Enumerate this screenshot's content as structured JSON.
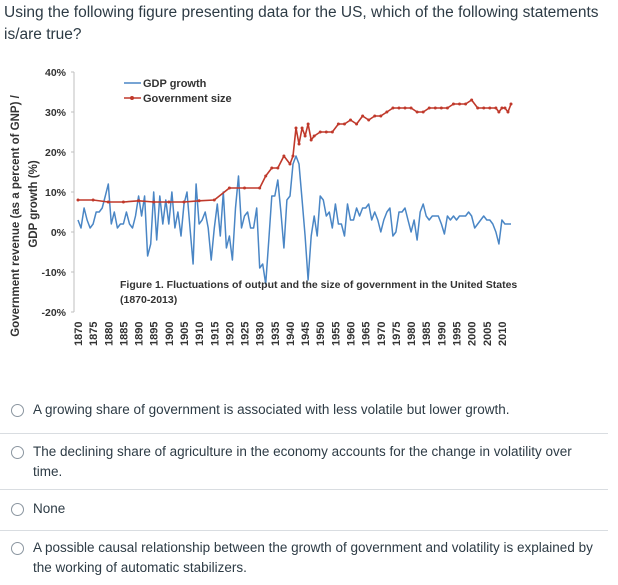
{
  "question": {
    "text": "Using the following figure presenting data for the US, which of the following statements is/are true?"
  },
  "chart_data": {
    "type": "line",
    "caption_line1": "Figure 1. Fluctuations of output and the size of government in the United States",
    "caption_line2": "(1870-2013)",
    "ylabel_outer": "Government revenue (as a percent of GNP) /",
    "ylabel_inner": "GDP growth (%)",
    "ylim": [
      -20,
      40
    ],
    "xlim": [
      1870,
      2013
    ],
    "y_ticks": [
      "40%",
      "30%",
      "20%",
      "10%",
      "0%",
      "-10%",
      "-20%"
    ],
    "y_tick_values": [
      40,
      30,
      20,
      10,
      0,
      -10,
      -20
    ],
    "x_ticks": [
      "1870",
      "1875",
      "1880",
      "1885",
      "1890",
      "1895",
      "1900",
      "1905",
      "1910",
      "1915",
      "1920",
      "1925",
      "1930",
      "1935",
      "1940",
      "1945",
      "1950",
      "1955",
      "1960",
      "1965",
      "1970",
      "1975",
      "1980",
      "1985",
      "1990",
      "1995",
      "2000",
      "2005",
      "2010"
    ],
    "legend": [
      "GDP growth",
      "Government size"
    ],
    "series": [
      {
        "name": "GDP growth",
        "color": "#4a86c5",
        "x": [
          1870,
          1871,
          1872,
          1873,
          1874,
          1875,
          1876,
          1877,
          1878,
          1879,
          1880,
          1881,
          1882,
          1883,
          1884,
          1885,
          1886,
          1887,
          1888,
          1889,
          1890,
          1891,
          1892,
          1893,
          1894,
          1895,
          1896,
          1897,
          1898,
          1899,
          1900,
          1901,
          1902,
          1903,
          1904,
          1905,
          1906,
          1907,
          1908,
          1909,
          1910,
          1911,
          1912,
          1913,
          1914,
          1915,
          1916,
          1917,
          1918,
          1919,
          1920,
          1921,
          1922,
          1923,
          1924,
          1925,
          1926,
          1927,
          1928,
          1929,
          1930,
          1931,
          1932,
          1933,
          1934,
          1935,
          1936,
          1937,
          1938,
          1939,
          1940,
          1941,
          1942,
          1943,
          1944,
          1945,
          1946,
          1947,
          1948,
          1949,
          1950,
          1951,
          1952,
          1953,
          1954,
          1955,
          1956,
          1957,
          1958,
          1959,
          1960,
          1961,
          1962,
          1963,
          1964,
          1965,
          1966,
          1967,
          1968,
          1969,
          1970,
          1971,
          1972,
          1973,
          1974,
          1975,
          1976,
          1977,
          1978,
          1979,
          1980,
          1981,
          1982,
          1983,
          1984,
          1985,
          1986,
          1987,
          1988,
          1989,
          1990,
          1991,
          1992,
          1993,
          1994,
          1995,
          1996,
          1997,
          1998,
          1999,
          2000,
          2001,
          2002,
          2003,
          2004,
          2005,
          2006,
          2007,
          2008,
          2009,
          2010,
          2011,
          2012,
          2013
        ],
        "values": [
          3,
          1,
          6,
          3,
          1,
          2,
          5,
          5,
          6,
          9,
          12,
          2,
          5,
          1,
          2,
          2,
          5,
          2,
          1,
          4,
          9,
          4,
          9,
          -6,
          -3,
          10,
          -2,
          9,
          2,
          8,
          2,
          10,
          1,
          5,
          -1,
          7,
          10,
          1,
          -8,
          12,
          2,
          3,
          5,
          1,
          -7,
          1,
          7,
          -1,
          10,
          -4,
          -1,
          -7,
          6,
          14,
          1,
          4,
          5,
          1,
          1,
          6,
          -9,
          -8,
          -13,
          -2,
          9,
          9,
          13,
          5,
          -4,
          8,
          9,
          17,
          19,
          17,
          8,
          -1,
          -12,
          -1,
          4,
          -1,
          9,
          8,
          4,
          5,
          1,
          7,
          2,
          2,
          -1,
          7,
          3,
          3,
          6,
          4,
          6,
          6,
          7,
          3,
          5,
          3,
          0,
          3,
          5,
          6,
          -1,
          0,
          5,
          5,
          6,
          3,
          0,
          3,
          -2,
          5,
          7,
          4,
          3,
          4,
          4,
          4,
          2,
          -0.5,
          4,
          3,
          4,
          3,
          4,
          4,
          4,
          5,
          4,
          1,
          2,
          3,
          4,
          3,
          3,
          2,
          0,
          -3,
          3,
          2,
          2,
          2
        ]
      },
      {
        "name": "Government size",
        "color": "#c0392b",
        "x": [
          1870,
          1875,
          1880,
          1885,
          1890,
          1895,
          1900,
          1905,
          1910,
          1915,
          1920,
          1925,
          1930,
          1932,
          1934,
          1936,
          1938,
          1940,
          1941,
          1942,
          1943,
          1944,
          1945,
          1946,
          1947,
          1948,
          1950,
          1952,
          1954,
          1956,
          1958,
          1960,
          1962,
          1964,
          1966,
          1968,
          1970,
          1972,
          1974,
          1976,
          1978,
          1980,
          1982,
          1984,
          1986,
          1988,
          1990,
          1992,
          1994,
          1996,
          1998,
          2000,
          2002,
          2004,
          2006,
          2008,
          2009,
          2010,
          2011,
          2012,
          2013
        ],
        "values": [
          8,
          8,
          7.5,
          7.5,
          7.8,
          7.5,
          7.5,
          7.5,
          7.8,
          8,
          11,
          11,
          11,
          14,
          16,
          16,
          19,
          17,
          19,
          26,
          22,
          26,
          24,
          27,
          23,
          24,
          25,
          25,
          25,
          27,
          27,
          28,
          27,
          29,
          28,
          29,
          29,
          30,
          31,
          31,
          31,
          31,
          30,
          30,
          31,
          31,
          31,
          31,
          32,
          32,
          32,
          33,
          31,
          31,
          31,
          31,
          30,
          31,
          31,
          30,
          32
        ]
      }
    ]
  },
  "options": [
    {
      "label": "A growing share of government is associated with less volatile but lower growth."
    },
    {
      "label": "The declining share of agriculture in the economy accounts for the change in volatility over time."
    },
    {
      "label": "None"
    },
    {
      "label": "A possible causal relationship between the growth of government and volatility is explained by the working of automatic stabilizers."
    }
  ]
}
